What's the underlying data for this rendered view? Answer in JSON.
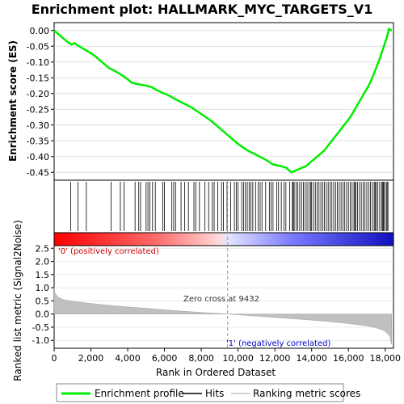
{
  "chart_data": [
    {
      "type": "line",
      "title": "Enrichment plot: HALLMARK_MYC_TARGETS_V1",
      "ylabel": "Enrichment score (ES)",
      "ylim": [
        -0.475,
        0.025
      ],
      "xlim": [
        0,
        18450
      ],
      "y_ticks": [
        0.0,
        -0.05,
        -0.1,
        -0.15,
        -0.2,
        -0.25,
        -0.3,
        -0.35,
        -0.4,
        -0.45
      ],
      "y_tick_labels": [
        "0.00",
        "-0.05",
        "-0.10",
        "-0.15",
        "-0.20",
        "-0.25",
        "-0.30",
        "-0.35",
        "-0.40",
        "-0.45"
      ],
      "grid": true,
      "line_color": "#00ee00",
      "series": [
        {
          "name": "Enrichment profile",
          "x": [
            0,
            400,
            700,
            950,
            1100,
            1300,
            1500,
            1800,
            2200,
            2600,
            3000,
            3200,
            3500,
            3900,
            4200,
            4500,
            4750,
            5000,
            5300,
            5600,
            5900,
            6200,
            6500,
            7000,
            7500,
            8000,
            8500,
            9000,
            9500,
            10000,
            10500,
            11000,
            11500,
            11900,
            12300,
            12600,
            12900,
            13100,
            13300,
            13500,
            13700,
            13900,
            14100,
            14300,
            14500,
            14700,
            14900,
            15100,
            15300,
            15500,
            15700,
            15900,
            16100,
            16300,
            16500,
            16700,
            16900,
            17100,
            17300,
            17500,
            17700,
            17900,
            18100,
            18200,
            18350
          ],
          "y": [
            0.0,
            -0.02,
            -0.035,
            -0.045,
            -0.04,
            -0.048,
            -0.055,
            -0.065,
            -0.08,
            -0.1,
            -0.12,
            -0.125,
            -0.135,
            -0.15,
            -0.165,
            -0.17,
            -0.172,
            -0.175,
            -0.18,
            -0.19,
            -0.198,
            -0.205,
            -0.215,
            -0.23,
            -0.245,
            -0.265,
            -0.285,
            -0.31,
            -0.335,
            -0.36,
            -0.38,
            -0.395,
            -0.41,
            -0.425,
            -0.43,
            -0.435,
            -0.45,
            -0.445,
            -0.44,
            -0.435,
            -0.43,
            -0.42,
            -0.41,
            -0.4,
            -0.39,
            -0.38,
            -0.365,
            -0.35,
            -0.335,
            -0.32,
            -0.305,
            -0.29,
            -0.275,
            -0.255,
            -0.235,
            -0.215,
            -0.195,
            -0.175,
            -0.15,
            -0.12,
            -0.09,
            -0.055,
            -0.02,
            0.005,
            0.0
          ]
        }
      ]
    },
    {
      "type": "heatmap",
      "description_labels": [
        "'0' (positively correlated)",
        "'1' (negatively correlated)"
      ],
      "hits_positions": [
        900,
        1300,
        1750,
        3100,
        3600,
        3800,
        4400,
        4600,
        4700,
        5000,
        5100,
        5200,
        5350,
        5500,
        5900,
        6000,
        6400,
        6500,
        6600,
        6900,
        7100,
        7300,
        7600,
        7700,
        7900,
        8200,
        8400,
        8600,
        8700,
        8900,
        9100,
        9200,
        9400,
        9600,
        9800,
        9900,
        10000,
        10200,
        10300,
        10400,
        10500,
        10600,
        10700,
        10800,
        10950,
        11100,
        11200,
        11300,
        11500,
        11700,
        11800,
        11900,
        12100,
        12200,
        12350,
        12500,
        12600,
        12800,
        12950,
        13000,
        13050,
        13150,
        13250,
        13350,
        13450,
        13550,
        13650,
        13750,
        13850,
        13950,
        14000,
        14100,
        14200,
        14300,
        14400,
        14500,
        14600,
        14700,
        14800,
        14900,
        15000,
        15100,
        15200,
        15300,
        15400,
        15500,
        15600,
        15700,
        15800,
        15900,
        16000,
        16100,
        16200,
        16300,
        16350,
        16400,
        16500,
        16600,
        16700,
        16800,
        16900,
        17000,
        17100,
        17200,
        17300,
        17400,
        17450,
        17500,
        17600,
        17700,
        17800,
        17850,
        17900,
        17950,
        18050,
        18100,
        18150
      ]
    },
    {
      "type": "area",
      "ylabel": "Ranked list metric (Signal2Noise)",
      "xlabel": "Rank in Ordered Dataset",
      "ylim": [
        -1.3,
        2.6
      ],
      "xlim": [
        0,
        18450
      ],
      "y_ticks": [
        2.5,
        2.0,
        1.5,
        1.0,
        0.5,
        0.0,
        -0.5,
        -1.0
      ],
      "y_tick_labels": [
        "2.5",
        "2.0",
        "1.5",
        "1.0",
        "0.5",
        "0.0",
        "-0.5",
        "-1.0"
      ],
      "x_ticks": [
        0,
        2000,
        4000,
        6000,
        8000,
        10000,
        12000,
        14000,
        16000,
        18000
      ],
      "x_tick_labels": [
        "0",
        "2,000",
        "4,000",
        "6,000",
        "8,000",
        "10,000",
        "12,000",
        "14,000",
        "16,000",
        "18,000"
      ],
      "zero_cross": 9432,
      "zero_cross_label": "Zero cross at 9432",
      "series": [
        {
          "name": "Ranking metric scores",
          "x": [
            0,
            50,
            200,
            500,
            1000,
            2000,
            3000,
            4000,
            5000,
            6000,
            7000,
            8000,
            9000,
            9432,
            10000,
            11000,
            12000,
            13000,
            14000,
            15000,
            16000,
            17000,
            17500,
            17900,
            18100,
            18250,
            18350
          ],
          "y": [
            1.0,
            0.8,
            0.65,
            0.55,
            0.48,
            0.4,
            0.33,
            0.27,
            0.22,
            0.16,
            0.11,
            0.06,
            0.02,
            0.0,
            -0.03,
            -0.08,
            -0.13,
            -0.18,
            -0.23,
            -0.29,
            -0.36,
            -0.45,
            -0.52,
            -0.62,
            -0.72,
            -0.85,
            -1.15
          ]
        }
      ]
    }
  ],
  "legend": {
    "items": [
      {
        "label": "Enrichment profile",
        "color": "#00ee00"
      },
      {
        "label": "Hits",
        "color": "#000000"
      },
      {
        "label": "Ranking metric scores",
        "color": "#c0c0c0"
      }
    ]
  }
}
